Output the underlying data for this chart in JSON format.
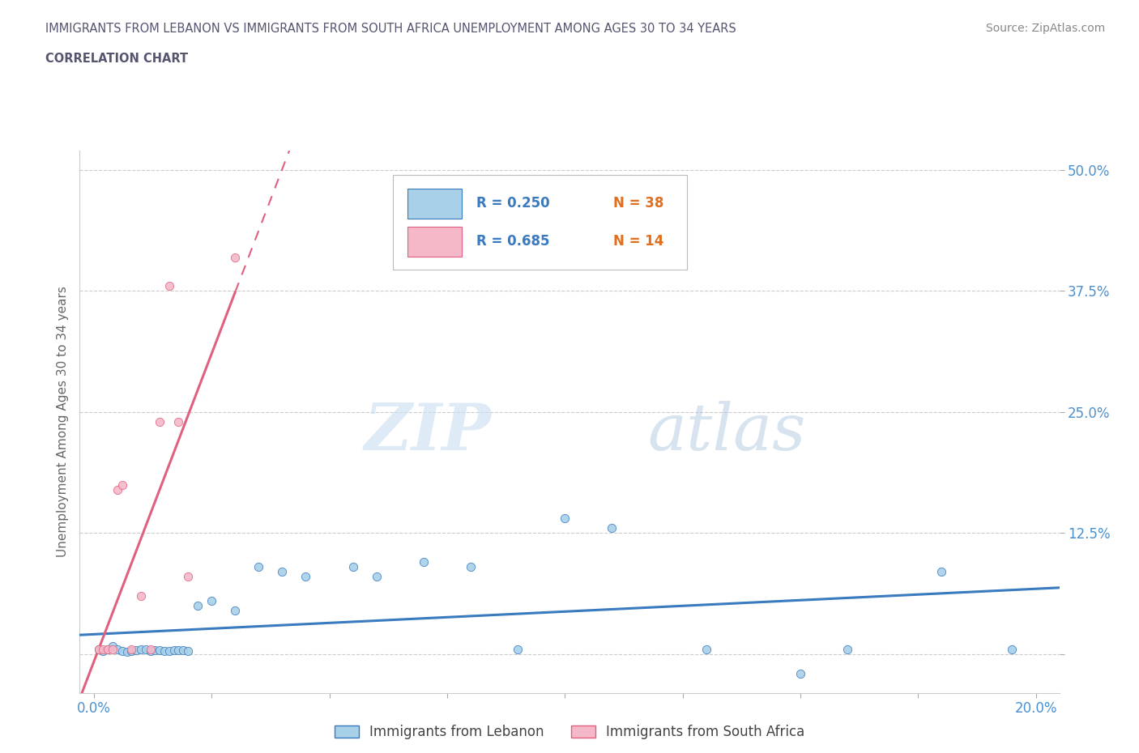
{
  "title_line1": "IMMIGRANTS FROM LEBANON VS IMMIGRANTS FROM SOUTH AFRICA UNEMPLOYMENT AMONG AGES 30 TO 34 YEARS",
  "title_line2": "CORRELATION CHART",
  "source": "Source: ZipAtlas.com",
  "ylabel": "Unemployment Among Ages 30 to 34 years",
  "legend1_r": "R = 0.250",
  "legend1_n": "N = 38",
  "legend2_r": "R = 0.685",
  "legend2_n": "N = 14",
  "color_lebanon": "#a8d0e8",
  "color_south_africa": "#f4b8c8",
  "color_line_lebanon": "#3a7abf",
  "color_line_sa": "#e06080",
  "color_title": "#555570",
  "color_axis_ticks": "#4a90d0",
  "watermark_zip": "ZIP",
  "watermark_atlas": "atlas",
  "lebanon_x": [
    0.001,
    0.002,
    0.003,
    0.004,
    0.005,
    0.006,
    0.007,
    0.008,
    0.009,
    0.01,
    0.011,
    0.012,
    0.013,
    0.014,
    0.015,
    0.016,
    0.017,
    0.018,
    0.019,
    0.02,
    0.022,
    0.025,
    0.03,
    0.035,
    0.04,
    0.045,
    0.055,
    0.06,
    0.07,
    0.08,
    0.09,
    0.1,
    0.11,
    0.13,
    0.15,
    0.16,
    0.18,
    0.195
  ],
  "lebanon_y": [
    0.005,
    0.003,
    0.005,
    0.008,
    0.005,
    0.003,
    0.002,
    0.003,
    0.004,
    0.005,
    0.005,
    0.003,
    0.004,
    0.004,
    0.003,
    0.003,
    0.004,
    0.004,
    0.004,
    0.003,
    0.05,
    0.055,
    0.045,
    0.09,
    0.085,
    0.08,
    0.09,
    0.08,
    0.095,
    0.09,
    0.005,
    0.14,
    0.13,
    0.005,
    -0.02,
    0.005,
    0.085,
    0.005
  ],
  "sa_x": [
    0.001,
    0.002,
    0.003,
    0.004,
    0.005,
    0.006,
    0.008,
    0.01,
    0.012,
    0.014,
    0.016,
    0.018,
    0.02,
    0.03
  ],
  "sa_y": [
    0.005,
    0.005,
    0.005,
    0.005,
    0.17,
    0.175,
    0.005,
    0.06,
    0.005,
    0.24,
    0.38,
    0.24,
    0.08,
    0.41
  ],
  "xlim": [
    -0.003,
    0.205
  ],
  "ylim": [
    -0.04,
    0.52
  ],
  "ytick_positions": [
    0.0,
    0.125,
    0.25,
    0.375,
    0.5
  ],
  "ytick_labels": [
    "",
    "12.5%",
    "25.0%",
    "37.5%",
    "50.0%"
  ],
  "xtick_positions": [
    0.0,
    0.025,
    0.05,
    0.075,
    0.1,
    0.125,
    0.15,
    0.175,
    0.2
  ],
  "xtick_labels": [
    "0.0%",
    "",
    "",
    "",
    "",
    "",
    "",
    "",
    "20.0%"
  ]
}
